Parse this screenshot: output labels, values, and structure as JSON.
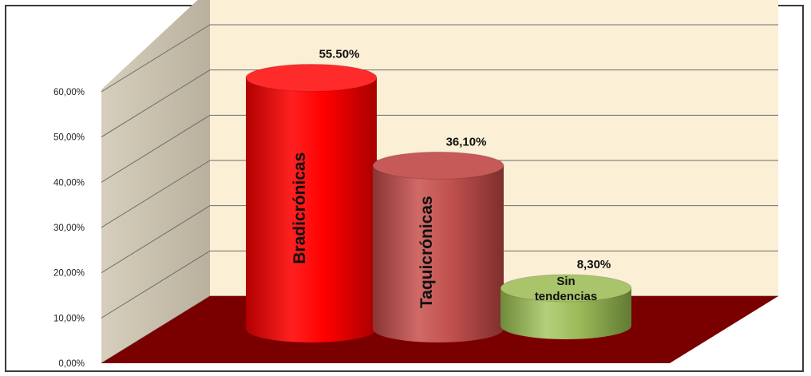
{
  "chart_data": {
    "type": "bar",
    "style": "3d-cylinder",
    "categories": [
      "Bradicrónicas",
      "Taquicrónicas",
      "Sin tendencias"
    ],
    "values": [
      55.5,
      36.1,
      8.3
    ],
    "value_labels": [
      "55.50%",
      "36,10%",
      "8,30%"
    ],
    "category_lines": [
      [
        "Bradicrónicas"
      ],
      [
        "Taquicrónicas"
      ],
      [
        "Sin",
        "tendencias"
      ]
    ],
    "y_ticks": [
      "0,00%",
      "10,00%",
      "20,00%",
      "30,00%",
      "40,00%",
      "50,00%",
      "60,00%"
    ],
    "ylim": [
      0,
      60
    ],
    "title": "",
    "xlabel": "",
    "ylabel": "",
    "grid": true,
    "legend": "none",
    "colors": {
      "bars": [
        "#ff0000",
        "#c0504d",
        "#9bbb59"
      ],
      "bar_tops": [
        "#ff2a2a",
        "#c65a58",
        "#a9c46a"
      ],
      "back_wall": "#fbefd5",
      "side_wall": "#c4bba9",
      "floor": "#7a0000",
      "gridline": "#6e6e6e"
    }
  }
}
